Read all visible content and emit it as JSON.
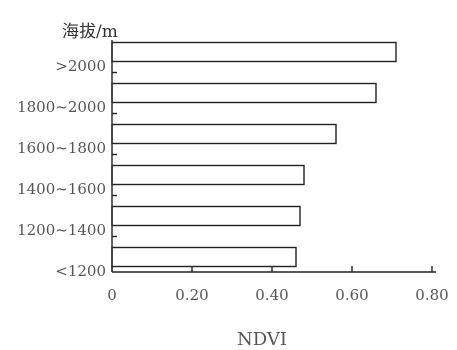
{
  "chart_data": {
    "type": "bar",
    "orientation": "horizontal",
    "title": "",
    "ylabel": "海拔/m",
    "xlabel": "NDVI",
    "categories": [
      ">2000",
      "1800~2000",
      "1600~1800",
      "1400~1600",
      "1200~1400",
      "<1200"
    ],
    "values": [
      0.71,
      0.66,
      0.56,
      0.48,
      0.47,
      0.46
    ],
    "xlim": [
      0,
      0.8
    ],
    "x_ticks": [
      "0",
      "0.20",
      "0.40",
      "0.60",
      "0.80"
    ],
    "grid": false,
    "legend": "none"
  }
}
